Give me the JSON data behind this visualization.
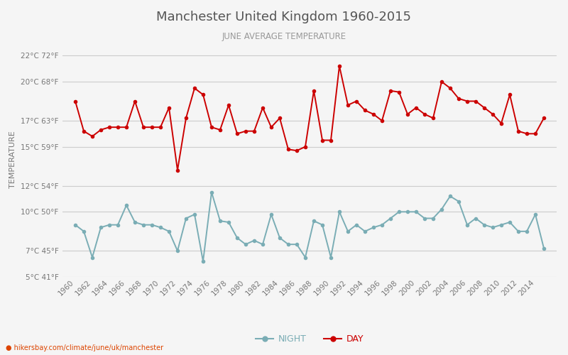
{
  "title": "Manchester United Kingdom 1960-2015",
  "subtitle": "JUNE AVERAGE TEMPERATURE",
  "ylabel": "TEMPERATURE",
  "footer": "hikersbay.com/climate/june/uk/manchester",
  "years": [
    1960,
    1961,
    1962,
    1963,
    1964,
    1965,
    1966,
    1967,
    1968,
    1969,
    1970,
    1971,
    1972,
    1973,
    1974,
    1975,
    1976,
    1977,
    1978,
    1979,
    1980,
    1981,
    1982,
    1983,
    1984,
    1985,
    1986,
    1987,
    1988,
    1989,
    1990,
    1991,
    1992,
    1993,
    1994,
    1995,
    1996,
    1997,
    1998,
    1999,
    2000,
    2001,
    2002,
    2003,
    2004,
    2005,
    2006,
    2007,
    2008,
    2009,
    2010,
    2011,
    2012,
    2013,
    2014,
    2015
  ],
  "day_temps": [
    18.5,
    16.2,
    15.8,
    16.3,
    16.5,
    16.5,
    16.5,
    18.5,
    16.5,
    16.5,
    16.5,
    18.0,
    13.2,
    17.2,
    19.5,
    19.0,
    16.5,
    16.3,
    18.2,
    16.0,
    16.2,
    16.2,
    18.0,
    16.5,
    17.2,
    14.8,
    14.7,
    15.0,
    19.3,
    15.5,
    15.5,
    21.2,
    18.2,
    18.5,
    17.8,
    17.5,
    17.0,
    19.3,
    19.2,
    17.5,
    18.0,
    17.5,
    17.2,
    20.0,
    19.5,
    18.7,
    18.5,
    18.5,
    18.0,
    17.5,
    16.8,
    19.0,
    16.2,
    16.0,
    16.0,
    17.2
  ],
  "night_temps": [
    9.0,
    8.5,
    6.5,
    8.8,
    9.0,
    9.0,
    10.5,
    9.2,
    9.0,
    9.0,
    8.8,
    8.5,
    7.0,
    9.5,
    9.8,
    6.2,
    11.5,
    9.3,
    9.2,
    8.0,
    7.5,
    7.8,
    7.5,
    9.8,
    8.0,
    7.5,
    7.5,
    6.5,
    9.3,
    9.0,
    6.5,
    10.0,
    8.5,
    9.0,
    8.5,
    8.8,
    9.0,
    9.5,
    10.0,
    10.0,
    10.0,
    9.5,
    9.5,
    10.2,
    11.2,
    10.8,
    9.0,
    9.5,
    9.0,
    8.8,
    9.0,
    9.2,
    8.5,
    8.5,
    9.8,
    7.2
  ],
  "day_color": "#cc0000",
  "night_color": "#7aadb5",
  "bg_color": "#f5f5f5",
  "plot_bg_color": "#f5f5f5",
  "grid_color": "#cccccc",
  "title_color": "#555555",
  "subtitle_color": "#999999",
  "ylabel_color": "#777777",
  "tick_color": "#777777",
  "legend_night_color": "#7aadb5",
  "legend_day_color": "#cc0000",
  "ylim_min": 5,
  "ylim_max": 23,
  "yticks_c": [
    5,
    7,
    10,
    12,
    15,
    17,
    20,
    22
  ],
  "yticks_f": [
    41,
    45,
    50,
    54,
    59,
    63,
    68,
    72
  ]
}
